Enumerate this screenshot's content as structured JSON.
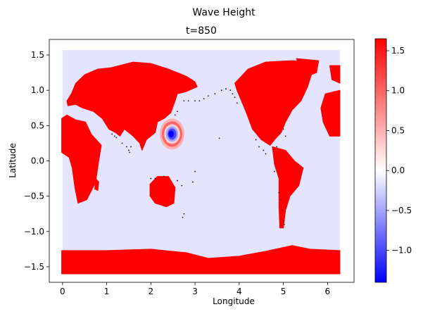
{
  "chart_data": {
    "type": "heatmap",
    "suptitle": "Wave Height",
    "title": "t=850",
    "xlabel": "Longitude",
    "ylabel": "Latitude",
    "xlim": [
      -0.3,
      6.6
    ],
    "ylim": [
      -1.72,
      1.72
    ],
    "xticks": [
      0,
      1,
      2,
      3,
      4,
      5,
      6
    ],
    "yticks": [
      -1.5,
      -1.0,
      -0.5,
      0.0,
      0.5,
      1.0,
      1.5
    ],
    "xtick_labels": [
      "0",
      "1",
      "2",
      "3",
      "4",
      "5",
      "6"
    ],
    "ytick_labels": [
      "−1.5",
      "−1.0",
      "−0.5",
      "0.0",
      "0.5",
      "1.0",
      "1.5"
    ],
    "colorbar": {
      "range": [
        -1.4,
        1.65
      ],
      "ticks": [
        -1.0,
        -0.5,
        0.0,
        0.5,
        1.0,
        1.5
      ],
      "tick_labels": [
        "−1.0",
        "−0.5",
        "0.0",
        "0.5",
        "1.0",
        "1.5"
      ],
      "colormap": "bwr",
      "colors": [
        "#0000ff",
        "#ffffff",
        "#ff0000"
      ]
    },
    "ocean_value": -0.15,
    "land_value": 1.65,
    "domain": {
      "lon": [
        0,
        6.28
      ],
      "lat": [
        -1.57,
        1.57
      ]
    },
    "land_regions": [
      {
        "name": "Eurasia",
        "points": [
          [
            0.1,
            0.85
          ],
          [
            0.2,
            0.95
          ],
          [
            0.3,
            1.1
          ],
          [
            0.5,
            1.22
          ],
          [
            0.8,
            1.3
          ],
          [
            1.1,
            1.32
          ],
          [
            1.6,
            1.4
          ],
          [
            2.0,
            1.38
          ],
          [
            2.4,
            1.3
          ],
          [
            2.8,
            1.2
          ],
          [
            3.0,
            1.12
          ],
          [
            3.05,
            1.05
          ],
          [
            2.8,
            0.98
          ],
          [
            2.6,
            0.95
          ],
          [
            2.55,
            0.85
          ],
          [
            2.45,
            0.68
          ],
          [
            2.3,
            0.6
          ],
          [
            2.15,
            0.55
          ],
          [
            2.1,
            0.4
          ],
          [
            1.9,
            0.3
          ],
          [
            1.8,
            0.15
          ],
          [
            1.75,
            0.25
          ],
          [
            1.6,
            0.35
          ],
          [
            1.4,
            0.45
          ],
          [
            1.3,
            0.35
          ],
          [
            1.2,
            0.4
          ],
          [
            1.05,
            0.45
          ],
          [
            0.9,
            0.6
          ],
          [
            0.7,
            0.7
          ],
          [
            0.45,
            0.75
          ],
          [
            0.3,
            0.8
          ],
          [
            0.12,
            0.78
          ]
        ]
      },
      {
        "name": "Africa",
        "points": [
          [
            -0.02,
            0.6
          ],
          [
            0.1,
            0.65
          ],
          [
            0.3,
            0.58
          ],
          [
            0.52,
            0.55
          ],
          [
            0.65,
            0.38
          ],
          [
            0.88,
            0.22
          ],
          [
            0.82,
            0.0
          ],
          [
            0.75,
            -0.3
          ],
          [
            0.55,
            -0.55
          ],
          [
            0.35,
            -0.6
          ],
          [
            0.28,
            -0.38
          ],
          [
            0.22,
            -0.1
          ],
          [
            0.15,
            0.05
          ],
          [
            -0.02,
            0.12
          ]
        ]
      },
      {
        "name": "Madagascar",
        "points": [
          [
            0.75,
            -0.25
          ],
          [
            0.82,
            -0.3
          ],
          [
            0.8,
            -0.42
          ],
          [
            0.73,
            -0.4
          ]
        ]
      },
      {
        "name": "Australia",
        "points": [
          [
            1.98,
            -0.33
          ],
          [
            2.15,
            -0.22
          ],
          [
            2.4,
            -0.22
          ],
          [
            2.55,
            -0.38
          ],
          [
            2.52,
            -0.6
          ],
          [
            2.35,
            -0.65
          ],
          [
            2.1,
            -0.6
          ],
          [
            1.98,
            -0.5
          ]
        ]
      },
      {
        "name": "North America",
        "points": [
          [
            3.9,
            1.1
          ],
          [
            4.2,
            1.3
          ],
          [
            4.6,
            1.4
          ],
          [
            5.2,
            1.42
          ],
          [
            5.6,
            1.4
          ],
          [
            5.65,
            1.25
          ],
          [
            5.55,
            1.05
          ],
          [
            5.4,
            0.85
          ],
          [
            5.2,
            0.72
          ],
          [
            5.05,
            0.55
          ],
          [
            4.95,
            0.4
          ],
          [
            4.8,
            0.3
          ],
          [
            4.7,
            0.22
          ],
          [
            4.5,
            0.3
          ],
          [
            4.3,
            0.45
          ],
          [
            4.15,
            0.7
          ],
          [
            4.05,
            0.85
          ],
          [
            3.95,
            1.0
          ]
        ]
      },
      {
        "name": "Greenland",
        "points": [
          [
            5.3,
            1.45
          ],
          [
            5.8,
            1.42
          ],
          [
            5.75,
            1.25
          ],
          [
            5.55,
            1.2
          ],
          [
            5.35,
            1.3
          ]
        ]
      },
      {
        "name": "South America",
        "points": [
          [
            4.75,
            0.2
          ],
          [
            5.05,
            0.15
          ],
          [
            5.25,
            0.0
          ],
          [
            5.45,
            -0.1
          ],
          [
            5.35,
            -0.35
          ],
          [
            5.15,
            -0.5
          ],
          [
            5.05,
            -0.7
          ],
          [
            5.0,
            -0.95
          ],
          [
            4.92,
            -0.95
          ],
          [
            4.9,
            -0.65
          ],
          [
            4.9,
            -0.25
          ],
          [
            4.8,
            -0.05
          ]
        ]
      },
      {
        "name": "Europe",
        "points": [
          [
            5.95,
            0.95
          ],
          [
            6.28,
            1.0
          ],
          [
            6.28,
            0.35
          ],
          [
            6.05,
            0.35
          ],
          [
            5.9,
            0.55
          ],
          [
            5.85,
            0.75
          ]
        ]
      },
      {
        "name": "Arctic",
        "points": [
          [
            6.05,
            1.35
          ],
          [
            6.28,
            1.35
          ],
          [
            6.28,
            1.1
          ],
          [
            6.1,
            1.15
          ]
        ]
      },
      {
        "name": "Antarctica",
        "points": [
          [
            -0.02,
            -1.27
          ],
          [
            1.0,
            -1.27
          ],
          [
            2.0,
            -1.25
          ],
          [
            2.8,
            -1.3
          ],
          [
            3.3,
            -1.38
          ],
          [
            4.0,
            -1.35
          ],
          [
            4.6,
            -1.28
          ],
          [
            5.2,
            -1.2
          ],
          [
            5.6,
            -1.25
          ],
          [
            6.28,
            -1.27
          ],
          [
            6.28,
            -1.6
          ],
          [
            -0.02,
            -1.6
          ]
        ]
      }
    ],
    "wave_rings": [
      {
        "value": 0.5,
        "cx": 2.48,
        "cy": 0.38,
        "rx": 0.28,
        "ry": 0.22
      },
      {
        "value": 1.0,
        "cx": 2.48,
        "cy": 0.38,
        "rx": 0.23,
        "ry": 0.18
      },
      {
        "value": 0.3,
        "cx": 2.48,
        "cy": 0.38,
        "rx": 0.18,
        "ry": 0.14
      },
      {
        "value": -0.5,
        "cx": 2.48,
        "cy": 0.38,
        "rx": 0.14,
        "ry": 0.11
      },
      {
        "value": -1.0,
        "cx": 2.48,
        "cy": 0.38,
        "rx": 0.1,
        "ry": 0.08
      },
      {
        "value": -1.4,
        "cx": 2.46,
        "cy": 0.38,
        "rx": 0.06,
        "ry": 0.05
      }
    ],
    "island_dots": [
      [
        1.12,
        0.38
      ],
      [
        1.18,
        0.35
      ],
      [
        1.22,
        0.33
      ],
      [
        1.35,
        0.25
      ],
      [
        1.45,
        0.2
      ],
      [
        1.5,
        0.15
      ],
      [
        1.52,
        0.12
      ],
      [
        1.55,
        0.2
      ],
      [
        2.0,
        -0.25
      ],
      [
        2.1,
        -0.25
      ],
      [
        2.3,
        -0.22
      ],
      [
        2.6,
        -0.28
      ],
      [
        2.7,
        -0.35
      ],
      [
        2.55,
        0.65
      ],
      [
        2.6,
        0.7
      ],
      [
        2.75,
        0.85
      ],
      [
        2.85,
        0.85
      ],
      [
        3.0,
        0.85
      ],
      [
        3.1,
        0.85
      ],
      [
        3.2,
        0.88
      ],
      [
        3.3,
        0.92
      ],
      [
        3.45,
        0.95
      ],
      [
        3.6,
        1.0
      ],
      [
        3.7,
        1.02
      ],
      [
        3.8,
        1.0
      ],
      [
        3.85,
        0.95
      ],
      [
        3.9,
        0.9
      ],
      [
        3.95,
        0.82
      ],
      [
        3.55,
        0.32
      ],
      [
        3.0,
        -0.15
      ],
      [
        2.95,
        -0.3
      ],
      [
        2.75,
        -0.75
      ],
      [
        2.72,
        -0.8
      ],
      [
        4.38,
        0.3
      ],
      [
        4.45,
        0.2
      ],
      [
        4.55,
        0.15
      ],
      [
        4.6,
        0.1
      ],
      [
        4.85,
        0.2
      ],
      [
        4.9,
        0.4
      ],
      [
        5.0,
        0.45
      ],
      [
        5.05,
        0.35
      ],
      [
        4.8,
        -0.15
      ],
      [
        4.9,
        -0.45
      ],
      [
        4.95,
        -0.55
      ],
      [
        4.98,
        -0.7
      ],
      [
        5.0,
        -0.85
      ],
      [
        5.02,
        -0.9
      ]
    ]
  }
}
